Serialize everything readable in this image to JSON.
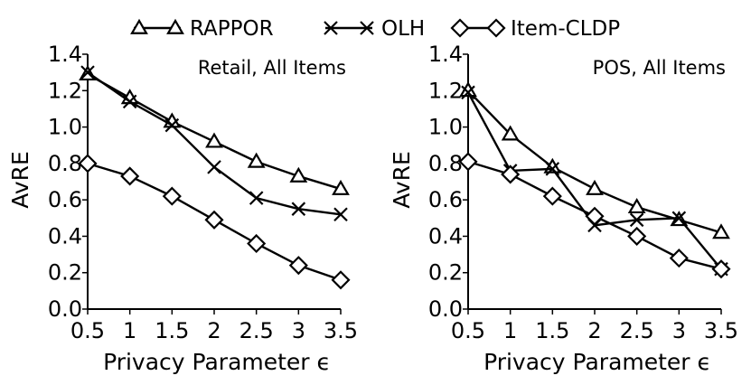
{
  "chart_data": [
    {
      "type": "line",
      "title": "Retail, All Items",
      "xlabel": "Privacy Parameter ϵ",
      "ylabel": "AvRE",
      "x": [
        0.5,
        1,
        1.5,
        2,
        2.5,
        3,
        3.5
      ],
      "x_tick_labels": [
        "0.5",
        "1",
        "1.5",
        "2",
        "2.5",
        "3",
        "3.5"
      ],
      "y_ticks": [
        0.0,
        0.2,
        0.4,
        0.6,
        0.8,
        1.0,
        1.2,
        1.4
      ],
      "y_tick_labels": [
        "0.0",
        "0.2",
        "0.4",
        "0.6",
        "0.8",
        "1.0",
        "1.2",
        "1.4"
      ],
      "xlim": [
        0.5,
        3.5
      ],
      "ylim": [
        0,
        1.4
      ],
      "grid": false,
      "series": [
        {
          "name": "RAPPOR",
          "marker": "triangle",
          "values": [
            1.29,
            1.16,
            1.03,
            0.92,
            0.81,
            0.73,
            0.66
          ]
        },
        {
          "name": "OLH",
          "marker": "x",
          "values": [
            1.3,
            1.14,
            1.01,
            0.78,
            0.61,
            0.55,
            0.52
          ]
        },
        {
          "name": "Item-CLDP",
          "marker": "diamond",
          "values": [
            0.8,
            0.73,
            0.62,
            0.49,
            0.36,
            0.24,
            0.16
          ]
        }
      ]
    },
    {
      "type": "line",
      "title": "POS, All Items",
      "xlabel": "Privacy Parameter ϵ",
      "ylabel": "AvRE",
      "x": [
        0.5,
        1,
        1.5,
        2,
        2.5,
        3,
        3.5
      ],
      "x_tick_labels": [
        "0.5",
        "1",
        "1.5",
        "2",
        "2.5",
        "3",
        "3.5"
      ],
      "y_ticks": [
        0.0,
        0.2,
        0.4,
        0.6,
        0.8,
        1.0,
        1.2,
        1.4
      ],
      "y_tick_labels": [
        "0.0",
        "0.2",
        "0.4",
        "0.6",
        "0.8",
        "1.0",
        "1.2",
        "1.4"
      ],
      "xlim": [
        0.5,
        3.5
      ],
      "ylim": [
        0,
        1.4
      ],
      "grid": false,
      "series": [
        {
          "name": "RAPPOR",
          "marker": "triangle",
          "values": [
            1.2,
            0.96,
            0.78,
            0.66,
            0.56,
            0.49,
            0.42
          ]
        },
        {
          "name": "OLH",
          "marker": "x",
          "values": [
            1.19,
            0.76,
            0.77,
            0.46,
            0.49,
            0.5,
            0.22
          ]
        },
        {
          "name": "Item-CLDP",
          "marker": "diamond",
          "values": [
            0.81,
            0.74,
            0.62,
            0.51,
            0.4,
            0.28,
            0.22
          ]
        }
      ]
    }
  ],
  "legend": {
    "placement": "top-center",
    "entries": [
      {
        "label": "RAPPOR",
        "marker": "triangle"
      },
      {
        "label": "OLH",
        "marker": "x"
      },
      {
        "label": "Item-CLDP",
        "marker": "diamond"
      }
    ]
  }
}
